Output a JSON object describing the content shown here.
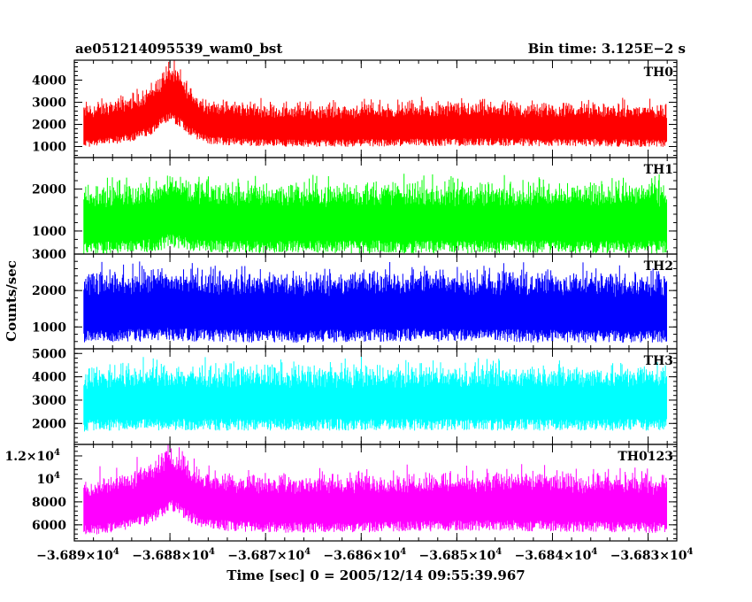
{
  "header": {
    "title": "ae051214095539_wam0_bst",
    "bin_time": "Bin time: 3.125E−2 s"
  },
  "axes": {
    "ylabel": "Counts/sec",
    "xlabel": "Time [sec] 0 = 2005/12/14 09:55:39.967",
    "x_ticks": [
      {
        "mant": "−3.689×10",
        "exp": "4",
        "value": -36890
      },
      {
        "mant": "−3.688×10",
        "exp": "4",
        "value": -36880
      },
      {
        "mant": "−3.687×10",
        "exp": "4",
        "value": -36870
      },
      {
        "mant": "−3.686×10",
        "exp": "4",
        "value": -36860
      },
      {
        "mant": "−3.685×10",
        "exp": "4",
        "value": -36850
      },
      {
        "mant": "−3.684×10",
        "exp": "4",
        "value": -36840
      },
      {
        "mant": "−3.683×10",
        "exp": "4",
        "value": -36830
      }
    ]
  },
  "chart_data": {
    "type": "line",
    "x_range": [
      -36890,
      -36827
    ],
    "grid": false,
    "x": [
      -36889,
      -36888,
      -36887,
      -36886,
      -36885,
      -36884,
      -36883,
      -36882,
      -36881,
      -36880,
      -36879,
      -36878,
      -36877,
      -36876,
      -36875,
      -36874,
      -36873,
      -36872,
      -36871,
      -36870,
      -36869,
      -36868,
      -36867,
      -36866,
      -36865,
      -36864,
      -36863,
      -36862,
      -36861,
      -36860,
      -36859,
      -36858,
      -36857,
      -36856,
      -36855,
      -36854,
      -36853,
      -36852,
      -36851,
      -36850,
      -36849,
      -36848,
      -36847,
      -36846,
      -36845,
      -36844,
      -36843,
      -36842,
      -36841,
      -36840,
      -36839,
      -36838,
      -36837,
      -36836,
      -36835,
      -36834,
      -36833,
      -36832,
      -36831,
      -36830,
      -36829,
      -36828
    ],
    "panels": [
      {
        "name": "TH0",
        "color": "#ff0000",
        "ylim": [
          500,
          4900
        ],
        "yticks": [
          {
            "v": 1000,
            "t": "1000"
          },
          {
            "v": 2000,
            "t": "2000"
          },
          {
            "v": 3000,
            "t": "3000"
          },
          {
            "v": 4000,
            "t": "4000"
          }
        ],
        "base": [
          1800,
          1850,
          1900,
          1950,
          2050,
          2150,
          2300,
          2500,
          2900,
          3300,
          3000,
          2500,
          2150,
          2000,
          1950,
          1900,
          1900,
          1880,
          1870,
          1850,
          1850,
          1840,
          1840,
          1830,
          1830,
          1820,
          1820,
          1830,
          1830,
          1840,
          1840,
          1850,
          1850,
          1860,
          1860,
          1860,
          1870,
          1870,
          1870,
          1880,
          1880,
          1880,
          1880,
          1880,
          1870,
          1870,
          1870,
          1860,
          1860,
          1860,
          1850,
          1850,
          1850,
          1840,
          1840,
          1840,
          1830,
          1830,
          1830,
          1820,
          1820,
          1820
        ],
        "spread": 700
      },
      {
        "name": "TH1",
        "color": "#00ff00",
        "ylim": [
          450,
          2750
        ],
        "yticks": [
          {
            "v": 1000,
            "t": "1000"
          },
          {
            "v": 2000,
            "t": "2000"
          }
        ],
        "base": [
          1150,
          1160,
          1170,
          1180,
          1190,
          1200,
          1220,
          1250,
          1300,
          1400,
          1350,
          1280,
          1240,
          1220,
          1210,
          1200,
          1200,
          1200,
          1200,
          1200,
          1200,
          1200,
          1200,
          1200,
          1200,
          1200,
          1200,
          1200,
          1200,
          1200,
          1200,
          1200,
          1200,
          1200,
          1200,
          1200,
          1200,
          1200,
          1200,
          1200,
          1200,
          1200,
          1200,
          1200,
          1200,
          1200,
          1200,
          1200,
          1200,
          1200,
          1200,
          1200,
          1200,
          1200,
          1200,
          1200,
          1200,
          1200,
          1200,
          1200,
          1200,
          1200
        ],
        "spread": 600
      },
      {
        "name": "TH2",
        "color": "#0000ff",
        "ylim": [
          400,
          3000
        ],
        "yticks": [
          {
            "v": 1000,
            "t": "1000"
          },
          {
            "v": 2000,
            "t": "2000"
          },
          {
            "v": 3000,
            "t": "3000"
          }
        ],
        "base": [
          1400,
          1410,
          1420,
          1430,
          1440,
          1450,
          1450,
          1460,
          1470,
          1480,
          1470,
          1460,
          1450,
          1440,
          1440,
          1430,
          1430,
          1420,
          1420,
          1420,
          1410,
          1410,
          1410,
          1410,
          1420,
          1420,
          1420,
          1430,
          1430,
          1430,
          1440,
          1440,
          1440,
          1450,
          1450,
          1450,
          1450,
          1450,
          1450,
          1440,
          1440,
          1440,
          1440,
          1430,
          1430,
          1430,
          1430,
          1420,
          1420,
          1420,
          1420,
          1410,
          1410,
          1410,
          1410,
          1400,
          1400,
          1400,
          1400,
          1400,
          1400,
          1400
        ],
        "spread": 700
      },
      {
        "name": "TH3",
        "color": "#00ffff",
        "ylim": [
          1100,
          5200
        ],
        "yticks": [
          {
            "v": 2000,
            "t": "2000"
          },
          {
            "v": 3000,
            "t": "3000"
          },
          {
            "v": 4000,
            "t": "4000"
          },
          {
            "v": 5000,
            "t": "5000"
          }
        ],
        "base": [
          2850,
          2870,
          2880,
          2890,
          2900,
          2900,
          2900,
          2900,
          2910,
          2920,
          2910,
          2900,
          2900,
          2900,
          2900,
          2900,
          2900,
          2900,
          2900,
          2900,
          2900,
          2900,
          2900,
          2900,
          2900,
          2900,
          2900,
          2900,
          2900,
          2900,
          2900,
          2900,
          2900,
          2900,
          2900,
          2900,
          2900,
          2900,
          2900,
          2900,
          2900,
          2900,
          2900,
          2900,
          2900,
          2900,
          2900,
          2900,
          2900,
          2900,
          2900,
          2900,
          2900,
          2900,
          2900,
          2900,
          2900,
          2900,
          2900,
          2900,
          2900,
          2900
        ],
        "spread": 1000
      },
      {
        "name": "TH0123",
        "color": "#ff00ff",
        "ylim": [
          4600,
          13000
        ],
        "yticks": [
          {
            "v": 6000,
            "t": "6000"
          },
          {
            "v": 8000,
            "t": "8000"
          },
          {
            "v": 10000,
            "t": "10",
            "exp": "4"
          },
          {
            "v": 12000,
            "t": "1.2×10",
            "exp": "4"
          }
        ],
        "base": [
          7200,
          7300,
          7400,
          7500,
          7700,
          7900,
          8100,
          8400,
          9000,
          9800,
          9300,
          8600,
          8100,
          7900,
          7800,
          7700,
          7650,
          7600,
          7600,
          7550,
          7550,
          7500,
          7500,
          7500,
          7500,
          7500,
          7500,
          7500,
          7550,
          7550,
          7550,
          7600,
          7600,
          7600,
          7600,
          7650,
          7650,
          7650,
          7650,
          7700,
          7700,
          7700,
          7700,
          7700,
          7700,
          7700,
          7650,
          7650,
          7650,
          7650,
          7600,
          7600,
          7600,
          7600,
          7600,
          7550,
          7550,
          7550,
          7550,
          7500,
          7500,
          7500
        ],
        "spread": 1800
      }
    ]
  }
}
